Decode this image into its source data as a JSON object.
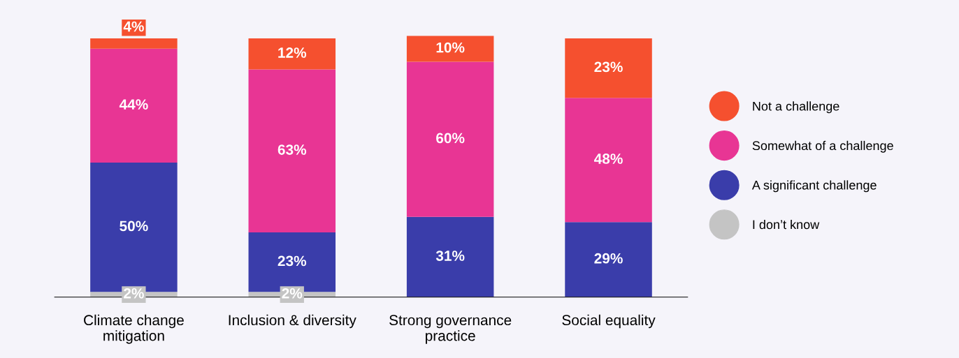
{
  "chart_data": {
    "type": "bar",
    "stacked": true,
    "grid": false,
    "legend": "right",
    "categories": [
      "Climate change\nmitigation",
      "Inclusion & diversity",
      "Strong governance\npractice",
      "Social equality"
    ],
    "series": [
      {
        "name": "I don’t know",
        "color": "#c4c4c4",
        "values": [
          2,
          2,
          null,
          null
        ],
        "value_labels": [
          "2%",
          "2%",
          null,
          null
        ]
      },
      {
        "name": "A significant challenge",
        "color": "#3a3daa",
        "values": [
          50,
          23,
          31,
          29
        ],
        "value_labels": [
          "50%",
          "23%",
          "31%",
          "29%"
        ]
      },
      {
        "name": "Somewhat of a challenge",
        "color": "#e83594",
        "values": [
          44,
          63,
          60,
          48
        ],
        "value_labels": [
          "44%",
          "63%",
          "60%",
          "48%"
        ]
      },
      {
        "name": "Not a challenge",
        "color": "#f5502f",
        "values": [
          4,
          12,
          10,
          23
        ],
        "value_labels": [
          "4%",
          "12%",
          "10%",
          "23%"
        ]
      }
    ]
  }
}
